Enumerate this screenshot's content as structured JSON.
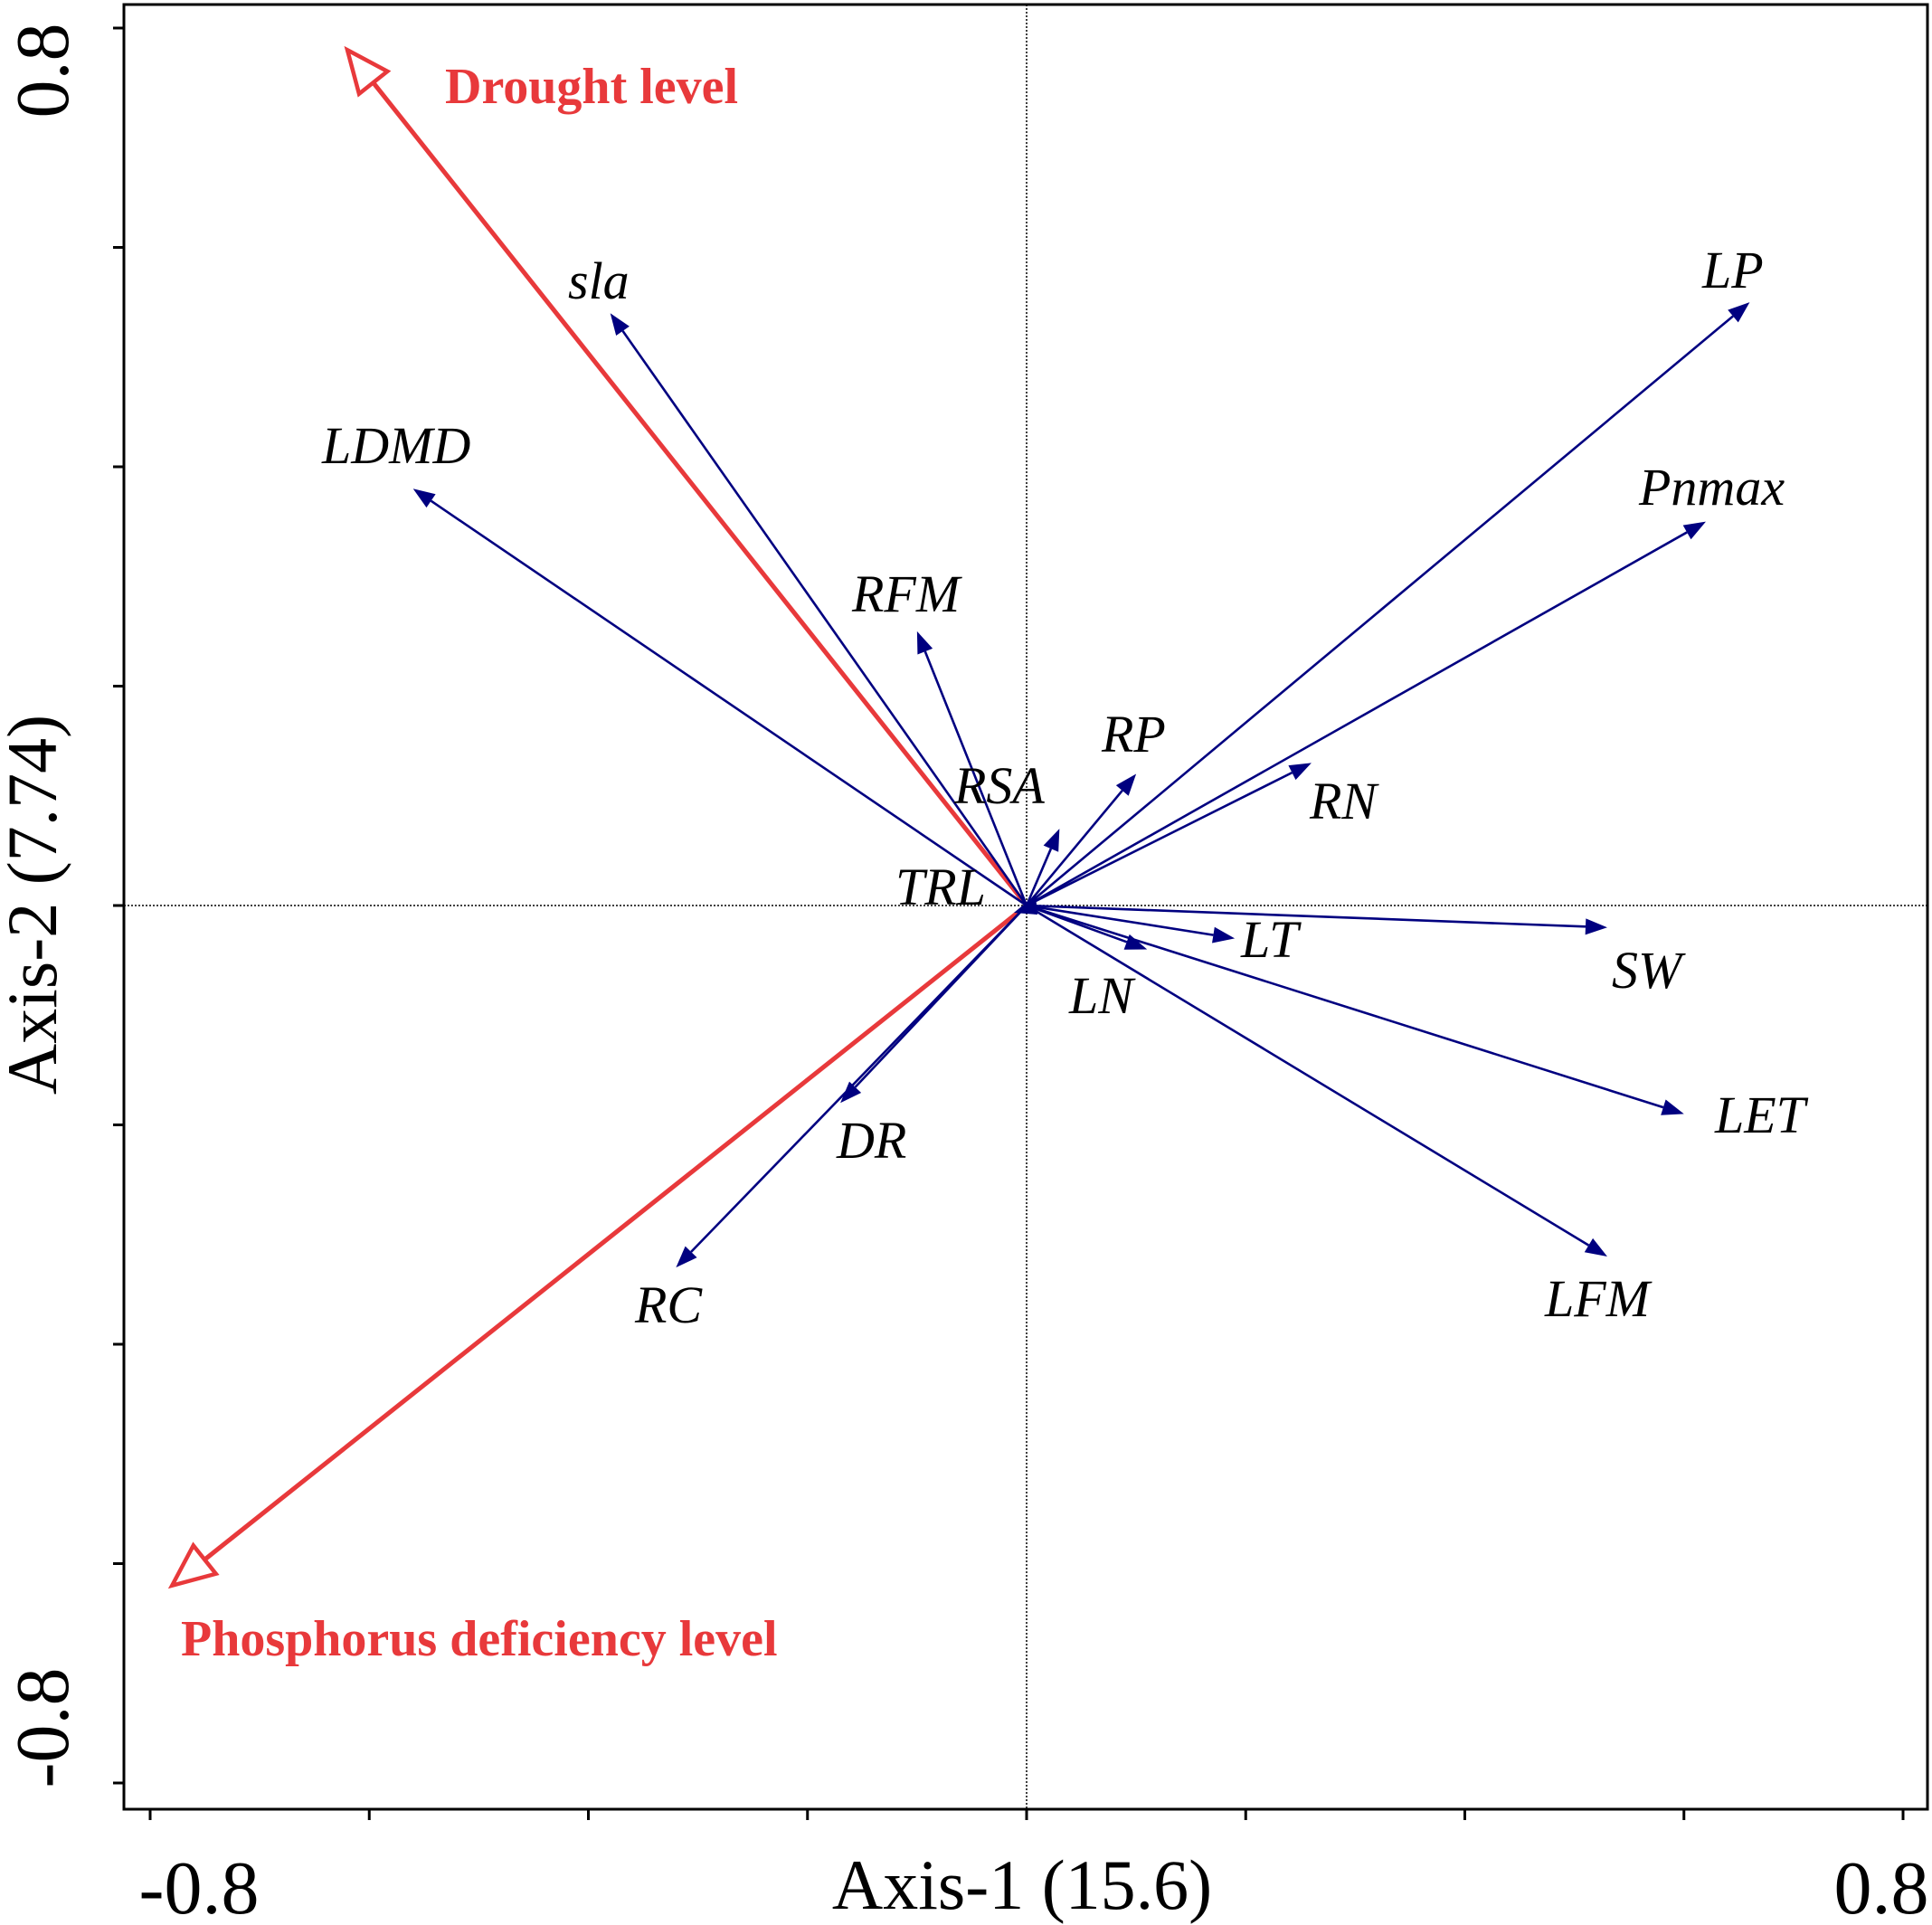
{
  "chart_data": {
    "type": "biplot",
    "title": "",
    "xlabel": "Axis-1 (15.6)",
    "ylabel": "Axis-2 (7.74)",
    "xlim": [
      -0.8,
      0.8
    ],
    "ylim": [
      -0.8,
      0.8
    ],
    "x_tick_labels": [
      {
        "value": -0.8,
        "label": "-0.8"
      },
      {
        "value": 0.8,
        "label": "0.8"
      }
    ],
    "y_tick_labels": [
      {
        "value": 0.8,
        "label": "0.8"
      },
      {
        "value": -0.8,
        "label": "-0.8"
      }
    ],
    "x_minor_ticks": [
      -0.8,
      -0.6,
      -0.4,
      -0.2,
      0.0,
      0.2,
      0.4,
      0.6,
      0.8
    ],
    "y_minor_ticks": [
      0.8,
      0.6,
      0.4,
      0.2,
      0.0,
      -0.2,
      -0.4,
      -0.6,
      -0.8
    ],
    "colors": {
      "environment": "#e8393b",
      "trait": "#000080",
      "axis": "#000000"
    },
    "environment_vectors": [
      {
        "name": "Drought level",
        "x": -0.62,
        "y": 0.78
      },
      {
        "name": "Phosphorus deficiency level",
        "x": -0.78,
        "y": -0.62
      }
    ],
    "trait_vectors": [
      {
        "name": "sla",
        "x": -0.38,
        "y": 0.54
      },
      {
        "name": "LDMD",
        "x": -0.56,
        "y": 0.38
      },
      {
        "name": "RFM",
        "x": -0.1,
        "y": 0.25
      },
      {
        "name": "RP",
        "x": 0.1,
        "y": 0.12
      },
      {
        "name": "RSA",
        "x": 0.03,
        "y": 0.07
      },
      {
        "name": "RN",
        "x": 0.26,
        "y": 0.13
      },
      {
        "name": "LP",
        "x": 0.66,
        "y": 0.55
      },
      {
        "name": "Pnmax",
        "x": 0.62,
        "y": 0.35
      },
      {
        "name": "TRL",
        "x": 0.0,
        "y": 0.0
      },
      {
        "name": "LT",
        "x": 0.19,
        "y": -0.03
      },
      {
        "name": "LN",
        "x": 0.11,
        "y": -0.04
      },
      {
        "name": "SW",
        "x": 0.53,
        "y": -0.02
      },
      {
        "name": "LET",
        "x": 0.6,
        "y": -0.19
      },
      {
        "name": "LFM",
        "x": 0.53,
        "y": -0.32
      },
      {
        "name": "DR",
        "x": -0.17,
        "y": -0.18
      },
      {
        "name": "RC",
        "x": -0.32,
        "y": -0.33
      }
    ]
  }
}
